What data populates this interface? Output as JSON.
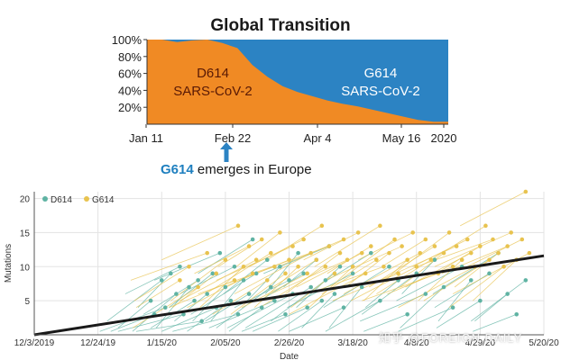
{
  "top_title": "Global Transition",
  "note": {
    "highlight": "G614",
    "rest": " emerges in Europe"
  },
  "watermark": "知乎 @FOREIGN DAILY",
  "colors": {
    "d614": "#f08a24",
    "g614": "#2c83c3",
    "arrow": "#2c83c3",
    "scatter_d614": "#5fb3a3",
    "scatter_g614": "#e8c34f",
    "trend": "#1a1a1a"
  },
  "chart_data": [
    {
      "type": "area",
      "title": "Global Transition",
      "ylabel": "",
      "xlabel": "",
      "y_ticks": [
        "100%",
        "80%",
        "60%",
        "40%",
        "20%"
      ],
      "x_ticks": [
        "Jan 11",
        "Feb 22",
        "Apr 4",
        "May 16",
        "2020"
      ],
      "ylim": [
        0,
        100
      ],
      "series": [
        {
          "name": "D614",
          "label_lines": [
            "D614",
            "SARS-CoV-2"
          ],
          "x": [
            "Jan 11",
            "Jan 18",
            "Jan 25",
            "Feb 1",
            "Feb 8",
            "Feb 15",
            "Feb 22",
            "Feb 29",
            "Mar 7",
            "Mar 14",
            "Mar 21",
            "Mar 28",
            "Apr 4",
            "Apr 11",
            "Apr 18",
            "Apr 25",
            "May 2",
            "May 9",
            "May 16",
            "May 23",
            "May 30"
          ],
          "values": [
            100,
            100,
            97,
            99,
            100,
            96,
            90,
            70,
            56,
            45,
            38,
            33,
            28,
            24,
            21,
            17,
            13,
            9,
            5,
            3,
            3
          ]
        },
        {
          "name": "G614",
          "label_lines": [
            "G614",
            "SARS-CoV-2"
          ],
          "x": [
            "Jan 11",
            "Jan 18",
            "Jan 25",
            "Feb 1",
            "Feb 8",
            "Feb 15",
            "Feb 22",
            "Feb 29",
            "Mar 7",
            "Mar 14",
            "Mar 21",
            "Mar 28",
            "Apr 4",
            "Apr 11",
            "Apr 18",
            "Apr 25",
            "May 2",
            "May 9",
            "May 16",
            "May 23",
            "May 30"
          ],
          "values": [
            0,
            0,
            3,
            1,
            0,
            4,
            10,
            30,
            44,
            55,
            62,
            67,
            72,
            76,
            79,
            83,
            87,
            91,
            95,
            97,
            97
          ]
        }
      ]
    },
    {
      "type": "scatter",
      "title": "",
      "ylabel": "Mutations",
      "xlabel": "Date",
      "ylim": [
        0,
        21
      ],
      "y_ticks": [
        "5",
        "10",
        "15",
        "20"
      ],
      "x_ticks": [
        "12/3/2019",
        "12/24/19",
        "1/15/20",
        "2/05/20",
        "2/26/20",
        "3/18/20",
        "4/8/20",
        "4/29/20",
        "5/20/20"
      ],
      "legend": {
        "position": "top-left",
        "entries": [
          "D614",
          "G614"
        ]
      },
      "trendline": {
        "from": {
          "x": "12/3/2019",
          "y": 0
        },
        "to": {
          "x": "5/20/20",
          "y": 11.6
        }
      },
      "series": [
        {
          "name": "D614",
          "points": [
            [
              64,
              5
            ],
            [
              66,
              3
            ],
            [
              70,
              8
            ],
            [
              72,
              4
            ],
            [
              75,
              9
            ],
            [
              78,
              6
            ],
            [
              80,
              10
            ],
            [
              82,
              3
            ],
            [
              85,
              7
            ],
            [
              88,
              5
            ],
            [
              90,
              8
            ],
            [
              92,
              2
            ],
            [
              95,
              6
            ],
            [
              98,
              9
            ],
            [
              100,
              4
            ],
            [
              102,
              12
            ],
            [
              105,
              7
            ],
            [
              108,
              5
            ],
            [
              110,
              10
            ],
            [
              112,
              3
            ],
            [
              115,
              8
            ],
            [
              118,
              6
            ],
            [
              120,
              14
            ],
            [
              122,
              9
            ],
            [
              125,
              4
            ],
            [
              128,
              11
            ],
            [
              130,
              7
            ],
            [
              132,
              5
            ],
            [
              135,
              10
            ],
            [
              138,
              3
            ],
            [
              140,
              8
            ],
            [
              142,
              6
            ],
            [
              145,
              12
            ],
            [
              148,
              9
            ],
            [
              150,
              4
            ],
            [
              152,
              7
            ],
            [
              155,
              11
            ],
            [
              158,
              5
            ],
            [
              160,
              8
            ],
            [
              162,
              13
            ],
            [
              165,
              6
            ],
            [
              168,
              10
            ],
            [
              170,
              4
            ],
            [
              175,
              9
            ],
            [
              180,
              7
            ],
            [
              185,
              12
            ],
            [
              190,
              5
            ],
            [
              195,
              10
            ],
            [
              200,
              8
            ],
            [
              205,
              3
            ],
            [
              210,
              9
            ],
            [
              215,
              6
            ],
            [
              220,
              11
            ],
            [
              225,
              7
            ],
            [
              230,
              4
            ],
            [
              235,
              10
            ],
            [
              240,
              8
            ],
            [
              245,
              5
            ],
            [
              250,
              9
            ],
            [
              255,
              12
            ],
            [
              260,
              6
            ],
            [
              265,
              3
            ],
            [
              270,
              8
            ]
          ]
        },
        {
          "name": "G614",
          "points": [
            [
              80,
              8
            ],
            [
              85,
              10
            ],
            [
              90,
              7
            ],
            [
              95,
              12
            ],
            [
              100,
              9
            ],
            [
              105,
              11
            ],
            [
              110,
              8
            ],
            [
              112,
              16
            ],
            [
              115,
              10
            ],
            [
              118,
              13
            ],
            [
              120,
              9
            ],
            [
              122,
              11
            ],
            [
              125,
              14
            ],
            [
              128,
              8
            ],
            [
              130,
              12
            ],
            [
              132,
              10
            ],
            [
              135,
              15
            ],
            [
              138,
              9
            ],
            [
              140,
              11
            ],
            [
              142,
              13
            ],
            [
              145,
              10
            ],
            [
              148,
              14
            ],
            [
              150,
              9
            ],
            [
              152,
              12
            ],
            [
              155,
              11
            ],
            [
              158,
              16
            ],
            [
              160,
              10
            ],
            [
              162,
              13
            ],
            [
              165,
              9
            ],
            [
              168,
              12
            ],
            [
              170,
              14
            ],
            [
              172,
              11
            ],
            [
              175,
              10
            ],
            [
              178,
              15
            ],
            [
              180,
              12
            ],
            [
              182,
              9
            ],
            [
              185,
              13
            ],
            [
              188,
              11
            ],
            [
              190,
              16
            ],
            [
              192,
              10
            ],
            [
              195,
              12
            ],
            [
              198,
              14
            ],
            [
              200,
              9
            ],
            [
              202,
              13
            ],
            [
              205,
              11
            ],
            [
              208,
              15
            ],
            [
              210,
              10
            ],
            [
              212,
              12
            ],
            [
              215,
              14
            ],
            [
              218,
              11
            ],
            [
              220,
              13
            ],
            [
              222,
              9
            ],
            [
              225,
              12
            ],
            [
              228,
              15
            ],
            [
              230,
              10
            ],
            [
              232,
              13
            ],
            [
              235,
              11
            ],
            [
              238,
              14
            ],
            [
              240,
              12
            ],
            [
              242,
              10
            ],
            [
              245,
              13
            ],
            [
              248,
              16
            ],
            [
              250,
              11
            ],
            [
              252,
              14
            ],
            [
              255,
              12
            ],
            [
              258,
              10
            ],
            [
              260,
              13
            ],
            [
              262,
              15
            ],
            [
              265,
              11
            ],
            [
              268,
              14
            ],
            [
              270,
              21
            ],
            [
              272,
              12
            ]
          ]
        }
      ]
    }
  ]
}
